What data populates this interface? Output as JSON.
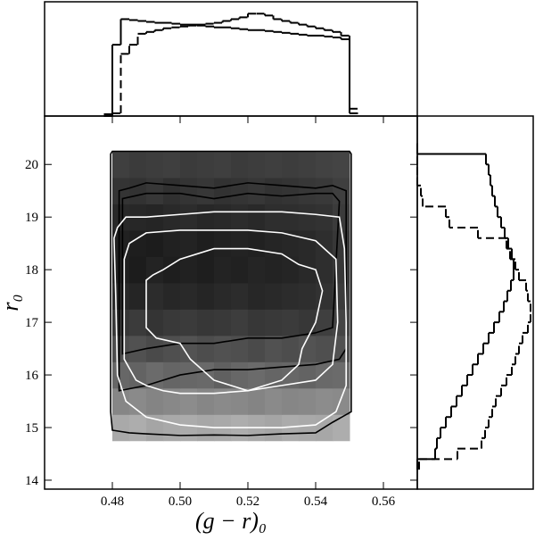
{
  "chart_data": [
    {
      "type": "heatmap",
      "xlabel": "(g − r)₀",
      "ylabel": "r₀",
      "xlim": [
        0.46,
        0.57
      ],
      "ylim": [
        13.83,
        20.92
      ],
      "xticks": [
        0.48,
        {
          "value": 0.5,
          "label": "0.50"
        },
        0.52,
        0.54,
        0.56
      ],
      "yticks": [
        14,
        15,
        16,
        17,
        18,
        19,
        20
      ],
      "xbins": [
        0.48,
        0.485,
        0.49,
        0.495,
        0.5,
        0.505,
        0.51,
        0.515,
        0.52,
        0.525,
        0.53,
        0.535,
        0.54,
        0.545,
        0.55
      ],
      "ybins": [
        14.75,
        15.25,
        15.75,
        16.25,
        16.75,
        17.25,
        17.75,
        18.25,
        18.75,
        19.25,
        19.75,
        20.25
      ],
      "density": [
        [
          30,
          28,
          32,
          30,
          29,
          31,
          30,
          28,
          30,
          32,
          29,
          30,
          31,
          28
        ],
        [
          46,
          44,
          47,
          45,
          43,
          46,
          44,
          45,
          47,
          44,
          46,
          45,
          43,
          44
        ],
        [
          60,
          62,
          58,
          61,
          60,
          59,
          63,
          60,
          58,
          61,
          60,
          62,
          59,
          58
        ],
        [
          72,
          70,
          73,
          71,
          69,
          72,
          70,
          71,
          73,
          70,
          72,
          69,
          71,
          70
        ],
        [
          82,
          80,
          83,
          81,
          80,
          82,
          81,
          79,
          82,
          81,
          80,
          82,
          78,
          76
        ],
        [
          88,
          90,
          87,
          89,
          88,
          90,
          88,
          87,
          89,
          88,
          87,
          86,
          84,
          80
        ],
        [
          92,
          94,
          91,
          93,
          92,
          93,
          91,
          92,
          90,
          91,
          90,
          88,
          86,
          82
        ],
        [
          92,
          93,
          94,
          92,
          91,
          93,
          92,
          91,
          92,
          90,
          89,
          88,
          86,
          82
        ],
        [
          88,
          89,
          90,
          88,
          87,
          89,
          88,
          87,
          88,
          86,
          86,
          85,
          84,
          80
        ],
        [
          83,
          84,
          82,
          85,
          83,
          82,
          84,
          83,
          82,
          84,
          83,
          82,
          81,
          78
        ],
        [
          78,
          80,
          79,
          78,
          80,
          79,
          78,
          80,
          79,
          78,
          79,
          78,
          77,
          76
        ]
      ],
      "contours": [
        {
          "color": "#000000",
          "x": [
            0.4795,
            0.4795,
            0.48,
            0.485,
            0.49,
            0.5,
            0.51,
            0.52,
            0.53,
            0.54,
            0.545,
            0.5505,
            0.5505,
            0.55,
            0.54,
            0.52,
            0.5,
            0.48
          ],
          "y": [
            20.2,
            15.3,
            14.95,
            14.9,
            14.88,
            14.85,
            14.86,
            14.85,
            14.88,
            14.9,
            15.1,
            15.3,
            20.2,
            20.25,
            20.25,
            20.25,
            20.25,
            20.25
          ]
        },
        {
          "color": "#000000",
          "x": [
            0.482,
            0.482,
            0.49,
            0.5,
            0.51,
            0.52,
            0.53,
            0.54,
            0.547,
            0.549,
            0.549,
            0.545,
            0.54,
            0.53,
            0.52,
            0.51,
            0.5,
            0.49,
            0.485
          ],
          "y": [
            19.5,
            15.7,
            15.8,
            16.0,
            16.1,
            16.1,
            16.15,
            16.2,
            16.3,
            16.5,
            19.5,
            19.6,
            19.55,
            19.6,
            19.65,
            19.55,
            19.6,
            19.65,
            19.55
          ]
        },
        {
          "color": "#000000",
          "x": [
            0.483,
            0.49,
            0.5,
            0.51,
            0.52,
            0.53,
            0.54,
            0.545,
            0.547,
            0.545,
            0.54,
            0.53,
            0.52,
            0.51,
            0.5,
            0.49,
            0.483
          ],
          "y": [
            16.4,
            16.5,
            16.6,
            16.6,
            16.7,
            16.7,
            16.8,
            16.9,
            19.3,
            19.45,
            19.45,
            19.4,
            19.45,
            19.35,
            19.45,
            19.45,
            19.35
          ]
        },
        {
          "color": "#ffffff",
          "x": [
            0.4805,
            0.481,
            0.4815,
            0.484,
            0.49,
            0.5,
            0.51,
            0.52,
            0.53,
            0.54,
            0.546,
            0.549,
            0.549,
            0.5485,
            0.547,
            0.54,
            0.53,
            0.52,
            0.51,
            0.5,
            0.49,
            0.484,
            0.4815
          ],
          "y": [
            18.6,
            17.5,
            16.0,
            15.5,
            15.2,
            15.05,
            15.0,
            15.0,
            15.0,
            15.05,
            15.3,
            15.8,
            17.0,
            18.4,
            19.0,
            19.05,
            19.1,
            19.1,
            19.1,
            19.05,
            19.0,
            19.0,
            18.8
          ]
        },
        {
          "color": "#ffffff",
          "x": [
            0.4835,
            0.4835,
            0.487,
            0.49,
            0.495,
            0.5,
            0.51,
            0.52,
            0.53,
            0.54,
            0.545,
            0.5465,
            0.546,
            0.54,
            0.53,
            0.52,
            0.51,
            0.5,
            0.49,
            0.485
          ],
          "y": [
            18.2,
            16.3,
            15.9,
            15.8,
            15.7,
            15.65,
            15.65,
            15.7,
            15.8,
            15.9,
            16.2,
            17.0,
            18.2,
            18.55,
            18.7,
            18.75,
            18.75,
            18.75,
            18.7,
            18.5
          ]
        },
        {
          "color": "#ffffff",
          "x": [
            0.49,
            0.49,
            0.493,
            0.5,
            0.503,
            0.51,
            0.52,
            0.53,
            0.535,
            0.536,
            0.54,
            0.542,
            0.54,
            0.535,
            0.53,
            0.52,
            0.51,
            0.5,
            0.495,
            0.492
          ],
          "y": [
            17.8,
            16.9,
            16.7,
            16.6,
            16.3,
            15.9,
            15.7,
            15.9,
            16.2,
            16.5,
            17.0,
            17.6,
            18.0,
            18.1,
            18.3,
            18.4,
            18.4,
            18.2,
            18.0,
            17.9
          ]
        }
      ]
    },
    {
      "type": "histogram",
      "orientation": "vertical",
      "xlim": [
        0.46,
        0.57
      ],
      "ylim": [
        0,
        125
      ],
      "bins": [
        0.4775,
        0.48,
        0.4825,
        0.485,
        0.4875,
        0.49,
        0.4925,
        0.495,
        0.4975,
        0.5,
        0.5025,
        0.505,
        0.5075,
        0.51,
        0.5125,
        0.515,
        0.5175,
        0.52,
        0.5225,
        0.525,
        0.5275,
        0.53,
        0.5325,
        0.535,
        0.5375,
        0.54,
        0.5425,
        0.545,
        0.5475,
        0.55,
        0.5525
      ],
      "series": [
        {
          "color": "#000000",
          "dashed": false,
          "values": [
            2,
            78,
            106,
            105,
            104,
            103,
            102,
            102,
            101,
            100,
            100,
            99,
            98,
            97,
            97,
            96,
            95,
            94,
            94,
            93,
            92,
            91,
            90,
            89,
            88,
            88,
            87,
            86,
            84,
            3
          ]
        },
        {
          "color": "#000000",
          "dashed": true,
          "values": [
            0,
            3,
            68,
            78,
            90,
            92,
            94,
            96,
            97,
            98,
            99,
            100,
            101,
            102,
            104,
            106,
            108,
            112,
            112,
            110,
            106,
            104,
            102,
            100,
            98,
            96,
            94,
            92,
            88,
            8
          ]
        }
      ]
    },
    {
      "type": "histogram",
      "orientation": "horizontal",
      "xlim": [
        0,
        130
      ],
      "ylim": [
        13.83,
        20.92
      ],
      "bins": [
        14.2,
        14.4,
        14.6,
        14.8,
        15.0,
        15.2,
        15.4,
        15.6,
        15.8,
        16.0,
        16.2,
        16.4,
        16.6,
        16.8,
        17.0,
        17.2,
        17.4,
        17.6,
        17.8,
        18.0,
        18.2,
        18.4,
        18.6,
        18.8,
        19.0,
        19.2,
        19.4,
        19.6,
        19.8,
        20.0,
        20.2,
        20.4
      ],
      "series": [
        {
          "color": "#000000",
          "dashed": false,
          "values": [
            0,
            20,
            22,
            26,
            32,
            38,
            44,
            50,
            56,
            62,
            68,
            74,
            80,
            86,
            92,
            97,
            101,
            105,
            108,
            108,
            106,
            102,
            98,
            94,
            90,
            87,
            84,
            82,
            80,
            77,
            0
          ]
        },
        {
          "color": "#000000",
          "dashed": true,
          "values": [
            2,
            45,
            72,
            76,
            80,
            84,
            88,
            94,
            100,
            106,
            110,
            114,
            118,
            124,
            127,
            127,
            124,
            122,
            114,
            110,
            104,
            100,
            68,
            36,
            32,
            6,
            4,
            0,
            0,
            0,
            0
          ]
        }
      ]
    }
  ]
}
